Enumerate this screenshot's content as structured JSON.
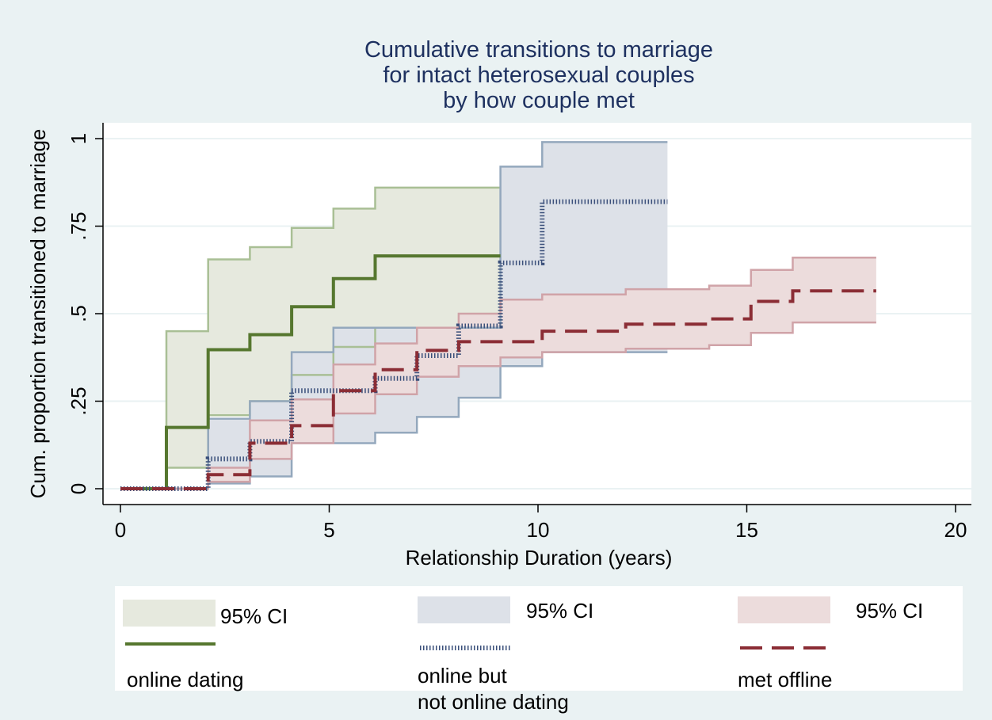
{
  "chart_data": {
    "type": "step",
    "title": [
      "Cumulative transitions to marriage",
      "for intact heterosexual couples",
      "by how couple met"
    ],
    "x_label": "Relationship Duration (years)",
    "y_label": "Cum. proportion transitioned to marriage",
    "xlim": [
      0,
      20
    ],
    "xticks": [
      0,
      5,
      10,
      15,
      20
    ],
    "ylim": [
      0,
      1
    ],
    "yticks": [
      0,
      {
        "value": 0.25,
        "label": ".25"
      },
      {
        "value": 0.5,
        "label": ".5"
      },
      {
        "value": 0.75,
        "label": ".75"
      },
      1
    ],
    "grid": true,
    "ci_label": "95% CI",
    "series": [
      {
        "name": "online dating",
        "color": "#56772f",
        "ci_color": "#e6e9de",
        "ci_edge": "#a9bf95",
        "line_style": "solid",
        "x": [
          0,
          1.1,
          2.1,
          3.1,
          4.1,
          5.1,
          6.1,
          9.1
        ],
        "values": [
          0,
          0.175,
          0.397,
          0.44,
          0.52,
          0.6,
          0.665,
          0.665
        ],
        "ci_upper": [
          0,
          0.45,
          0.655,
          0.69,
          0.745,
          0.8,
          0.86,
          0.86
        ],
        "ci_lower": [
          0,
          0.06,
          0.21,
          0.25,
          0.325,
          0.405,
          0.46,
          0.46
        ]
      },
      {
        "name": "online but\nnot online dating",
        "color": "#3a4f7a",
        "ci_color": "#dde1e8",
        "ci_edge": "#94a8bd",
        "line_style": "dotted",
        "x": [
          0,
          2.1,
          3.1,
          4.1,
          5.1,
          6.1,
          7.1,
          8.1,
          9.1,
          10.1,
          13.1
        ],
        "values": [
          0,
          0.085,
          0.135,
          0.28,
          0.28,
          0.315,
          0.38,
          0.465,
          0.645,
          0.82,
          0.82
        ],
        "ci_upper": [
          0,
          0.2,
          0.25,
          0.39,
          0.46,
          0.46,
          0.46,
          0.46,
          0.92,
          0.99,
          0.99
        ],
        "ci_lower": [
          0,
          0.015,
          0.035,
          0.13,
          0.13,
          0.16,
          0.205,
          0.26,
          0.35,
          0.39,
          0.39
        ]
      },
      {
        "name": "met offline",
        "color": "#8b2d35",
        "ci_color": "#ecdcdc",
        "ci_edge": "#d0a3a8",
        "line_style": "dashed",
        "x": [
          0,
          2.1,
          3.1,
          4.1,
          5.1,
          6.1,
          7.1,
          8.1,
          9.1,
          10.1,
          12.1,
          14.1,
          15.1,
          16.1,
          18.1
        ],
        "values": [
          0,
          0.04,
          0.13,
          0.18,
          0.28,
          0.34,
          0.395,
          0.42,
          0.42,
          0.45,
          0.47,
          0.485,
          0.535,
          0.565,
          0.565
        ],
        "ci_upper": [
          0,
          0.06,
          0.195,
          0.255,
          0.355,
          0.415,
          0.46,
          0.5,
          0.54,
          0.555,
          0.57,
          0.58,
          0.625,
          0.66,
          0.66
        ],
        "ci_lower": [
          0,
          0.02,
          0.085,
          0.13,
          0.215,
          0.27,
          0.32,
          0.35,
          0.375,
          0.39,
          0.4,
          0.41,
          0.445,
          0.475,
          0.475
        ]
      }
    ]
  }
}
